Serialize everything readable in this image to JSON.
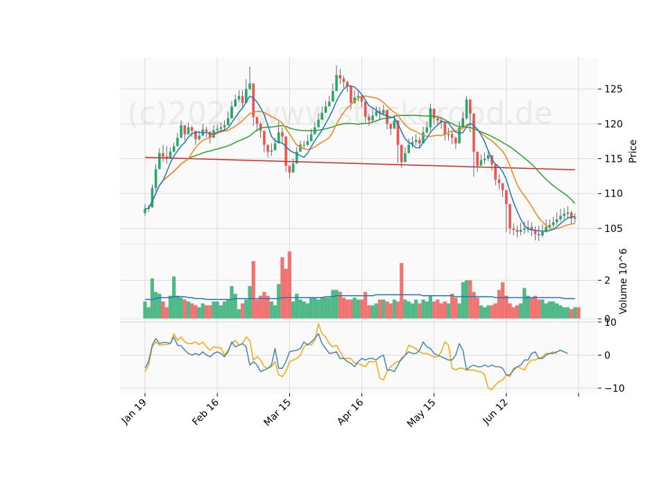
{
  "watermark": "(c)2024 www.stockorgod.de",
  "chart_data": [
    {
      "panel": "price",
      "type": "candlestick",
      "ylabel": "Price",
      "ylim": [
        102.8,
        129.5
      ],
      "yticks": [
        105,
        110,
        115,
        120,
        125
      ],
      "x_tick_labels": [
        "Jan 19",
        "Feb 16",
        "Mar 15",
        "Apr 16",
        "May 15",
        "Jun 12",
        ""
      ],
      "x_tick_index": [
        0,
        20,
        40,
        60,
        80,
        100,
        120
      ],
      "grid": true,
      "colors": {
        "up": "#26a96b",
        "down": "#ef5350",
        "ma_fast": "#1f77b4",
        "ma_mid": "#ff7f0e",
        "ma_slow": "#2ca02c",
        "ma_long": "#d62728",
        "wick": "#444444"
      },
      "close": [
        107.8,
        108.0,
        110.8,
        113.5,
        115.8,
        115.3,
        115.0,
        116.0,
        116.8,
        118.0,
        119.8,
        118.5,
        119.5,
        119.0,
        117.8,
        118.3,
        119.2,
        118.9,
        118.0,
        119.1,
        119.3,
        119.5,
        119.8,
        120.8,
        122.5,
        123.5,
        124.0,
        123.0,
        125.0,
        125.8,
        121.0,
        120.0,
        119.0,
        117.0,
        116.0,
        116.2,
        117.2,
        118.8,
        118.2,
        114.0,
        113.0,
        114.3,
        116.0,
        117.0,
        117.0,
        117.5,
        118.5,
        119.5,
        120.6,
        121.6,
        122.5,
        123.2,
        124.7,
        127.0,
        126.5,
        126.0,
        125.4,
        123.0,
        123.8,
        124.0,
        123.2,
        121.0,
        120.5,
        121.2,
        121.8,
        121.5,
        122.0,
        120.0,
        119.3,
        120.5,
        117.0,
        114.5,
        115.8,
        117.0,
        117.4,
        117.7,
        117.2,
        118.8,
        119.5,
        122.2,
        120.8,
        120.5,
        120.2,
        118.5,
        118.5,
        118.0,
        117.2,
        119.5,
        120.8,
        123.5,
        121.5,
        116.0,
        114.0,
        114.8,
        115.0,
        115.5,
        114.2,
        112.0,
        111.5,
        110.5,
        108.5,
        105.0,
        104.8,
        104.5,
        104.8,
        105.0,
        105.2,
        104.7,
        104.2,
        104.0,
        104.5,
        105.2,
        105.5,
        105.9,
        106.3,
        106.8,
        107.1,
        107.3,
        106.4,
        106.6
      ],
      "high": [
        108.5,
        108.4,
        111.3,
        114.2,
        116.5,
        117.0,
        116.8,
        116.6,
        117.3,
        118.7,
        120.5,
        119.5,
        120.2,
        119.7,
        118.8,
        119.0,
        120.0,
        119.6,
        118.9,
        119.8,
        119.9,
        120.1,
        120.5,
        121.8,
        123.3,
        124.2,
        124.8,
        124.8,
        126.4,
        128.2,
        122.4,
        121.0,
        120.2,
        118.0,
        117.0,
        117.2,
        118.0,
        120.3,
        119.5,
        115.5,
        114.0,
        115.0,
        116.7,
        117.6,
        117.6,
        118.4,
        119.3,
        120.3,
        121.5,
        122.5,
        123.3,
        124.0,
        125.8,
        128.4,
        127.9,
        126.9,
        126.2,
        124.6,
        124.8,
        124.6,
        124.1,
        122.4,
        121.4,
        122.1,
        122.5,
        122.4,
        122.7,
        121.2,
        120.0,
        121.3,
        119.5,
        116.5,
        116.7,
        117.9,
        118.2,
        118.5,
        118.1,
        119.6,
        120.3,
        122.9,
        122.0,
        121.2,
        121.0,
        119.4,
        119.4,
        119.1,
        118.2,
        120.3,
        121.7,
        124.0,
        123.3,
        117.6,
        115.7,
        115.6,
        115.9,
        116.3,
        115.5,
        113.1,
        112.7,
        111.4,
        109.8,
        106.8,
        105.7,
        105.4,
        105.8,
        106.0,
        106.2,
        105.9,
        105.3,
        105.4,
        105.6,
        106.3,
        106.3,
        106.7,
        107.3,
        107.8,
        107.9,
        108.2,
        107.5,
        107.2
      ],
      "low": [
        106.8,
        107.4,
        108.3,
        110.3,
        113.7,
        114.5,
        114.3,
        115.0,
        115.9,
        117.0,
        118.1,
        117.6,
        118.6,
        118.1,
        117.0,
        117.6,
        118.4,
        118.1,
        117.2,
        118.4,
        118.6,
        118.8,
        119.0,
        120.0,
        121.7,
        122.7,
        123.2,
        122.2,
        124.3,
        124.8,
        119.7,
        118.9,
        118.0,
        115.9,
        115.2,
        115.4,
        116.3,
        117.8,
        117.3,
        113.1,
        112.2,
        113.6,
        115.3,
        116.3,
        116.3,
        116.8,
        117.7,
        118.7,
        119.9,
        120.8,
        121.8,
        122.5,
        123.9,
        126.0,
        125.7,
        125.2,
        124.6,
        122.1,
        122.9,
        123.2,
        122.4,
        120.2,
        119.7,
        120.3,
        121.0,
        120.6,
        121.2,
        119.2,
        118.4,
        119.5,
        114.4,
        113.7,
        114.9,
        116.2,
        116.6,
        116.9,
        116.4,
        118.0,
        118.6,
        119.0,
        119.9,
        119.7,
        119.3,
        117.6,
        117.6,
        117.1,
        116.4,
        118.6,
        119.9,
        120.6,
        118.8,
        112.4,
        113.1,
        114.0,
        114.2,
        114.6,
        113.3,
        111.2,
        110.6,
        109.5,
        104.5,
        104.2,
        104.0,
        103.7,
        104.0,
        104.2,
        104.4,
        103.9,
        103.3,
        103.2,
        103.7,
        104.4,
        104.8,
        105.1,
        105.5,
        106.0,
        106.3,
        106.5,
        105.6,
        105.8
      ]
    },
    {
      "panel": "volume",
      "type": "bar",
      "ylabel": "Volume  10^6",
      "ylim": [
        0,
        3.9
      ],
      "yticks": [
        0,
        2
      ],
      "values": [
        0.9,
        0.6,
        2.1,
        1.4,
        1.3,
        0.9,
        0.6,
        1.2,
        2.2,
        1.2,
        1.1,
        1.0,
        0.9,
        0.8,
        0.7,
        0.6,
        0.8,
        0.7,
        0.7,
        0.9,
        0.9,
        0.7,
        0.9,
        1.0,
        1.7,
        1.3,
        0.5,
        0.8,
        1.0,
        1.7,
        3.0,
        1.0,
        1.2,
        1.4,
        1.2,
        0.9,
        0.7,
        1.8,
        3.2,
        2.6,
        3.5,
        0.9,
        1.3,
        1.0,
        0.9,
        0.8,
        1.1,
        1.1,
        1.0,
        1.1,
        1.1,
        1.1,
        1.5,
        1.5,
        1.4,
        1.1,
        1.0,
        1.0,
        1.1,
        1.0,
        1.0,
        1.4,
        0.7,
        0.7,
        0.8,
        1.0,
        1.0,
        0.9,
        0.8,
        1.0,
        0.9,
        2.9,
        1.0,
        0.9,
        0.8,
        1.0,
        0.8,
        1.0,
        0.9,
        1.2,
        0.9,
        1.0,
        0.8,
        0.9,
        0.8,
        1.3,
        1.1,
        0.8,
        1.9,
        2.0,
        2.0,
        1.4,
        1.1,
        0.7,
        0.6,
        0.7,
        0.7,
        0.8,
        1.5,
        1.9,
        1.2,
        0.8,
        0.6,
        0.7,
        0.8,
        1.6,
        1.2,
        1.1,
        1.2,
        1.0,
        1.0,
        0.8,
        0.9,
        0.9,
        0.8,
        0.7,
        0.6,
        0.6,
        0.5,
        0.6,
        0.6
      ],
      "ma_values": [
        1.0,
        1.0,
        1.0,
        1.05,
        1.1,
        1.1,
        1.1,
        1.1,
        1.15,
        1.15,
        1.15,
        1.15,
        1.1,
        1.1,
        1.05,
        1.05,
        1.05,
        1.0,
        1.0,
        1.0,
        1.0,
        1.0,
        1.0,
        1.0,
        1.0,
        1.05,
        1.05,
        1.05,
        1.05,
        1.05,
        1.05,
        1.05,
        1.05,
        1.05,
        1.05,
        1.05,
        1.05,
        1.05,
        1.1,
        1.1,
        1.1,
        1.1,
        1.1,
        1.1,
        1.1,
        1.1,
        1.1,
        1.1,
        1.1,
        1.1,
        1.15,
        1.15,
        1.15,
        1.2,
        1.2,
        1.2,
        1.2,
        1.2,
        1.2,
        1.2,
        1.2,
        1.2,
        1.2,
        1.2,
        1.25,
        1.25,
        1.25,
        1.25,
        1.25,
        1.25,
        1.25,
        1.25,
        1.25,
        1.25,
        1.25,
        1.25,
        1.25,
        1.2,
        1.2,
        1.2,
        1.2,
        1.2,
        1.2,
        1.2,
        1.2,
        1.2,
        1.15,
        1.15,
        1.15,
        1.15,
        1.15,
        1.15,
        1.15,
        1.15,
        1.15,
        1.15,
        1.15,
        1.1,
        1.1,
        1.1,
        1.1,
        1.1,
        1.1,
        1.1,
        1.1,
        1.1,
        1.1,
        1.1,
        1.1,
        1.1,
        1.1,
        1.1,
        1.1,
        1.1,
        1.1,
        1.1,
        1.05,
        1.05,
        1.05,
        1.05
      ]
    },
    {
      "panel": "oscillator",
      "type": "line",
      "ylim": [
        -11.5,
        11.0
      ],
      "yticks": [
        -10,
        0,
        10
      ],
      "colors": {
        "line1": "#4682b4",
        "line2": "#ffa500"
      },
      "line1": [
        -4,
        -2,
        3,
        5,
        3.5,
        3.8,
        3.8,
        3.5,
        5.5,
        3,
        2.8,
        1.5,
        0.5,
        0,
        0.5,
        0,
        1,
        0,
        -0.5,
        0.5,
        1,
        0.5,
        -0.5,
        1,
        4,
        2.5,
        3,
        3.5,
        2.5,
        -3,
        -2,
        -3,
        -5,
        -4.5,
        -4,
        -3,
        2,
        -4,
        -4,
        -2,
        1,
        1.3,
        1.5,
        2,
        4,
        3,
        4,
        5,
        6.5,
        3.5,
        2,
        0.5,
        0.7,
        1,
        -1,
        -1,
        -2,
        -2.5,
        -3.5,
        -2,
        -1,
        -1.5,
        -1,
        -1,
        -1.5,
        -0.5,
        0,
        -4.5,
        -4.5,
        -5,
        -3,
        -1,
        0,
        1,
        0.5,
        0.5,
        1.5,
        4,
        2.5,
        2,
        0.5,
        0,
        -0.5,
        -1,
        -1.5,
        -1.5,
        0,
        3.5,
        1.5,
        -4.5,
        -3.5,
        -3,
        -3.5,
        -3.5,
        -3,
        -3.5,
        -3,
        -3.5,
        -3.5,
        -4,
        -6,
        -6,
        -4.5,
        -3.5,
        -3,
        -1.5,
        -1.5,
        0.5,
        1,
        -1,
        -1,
        0,
        0.5,
        0.5,
        1,
        1.5,
        1,
        0.5
      ],
      "line2": [
        -5,
        -3,
        2.5,
        4,
        3,
        3.2,
        3.2,
        3.5,
        6.5,
        4.5,
        5.5,
        4,
        3.5,
        3.5,
        4,
        3.2,
        4,
        2.5,
        1.5,
        2.5,
        2.3,
        2.2,
        0,
        1.5,
        3.5,
        4.5,
        3,
        3.5,
        5.5,
        4.5,
        -1.5,
        -0.5,
        -1.5,
        -3.5,
        -4,
        -3.5,
        -2,
        -6,
        -6.5,
        -5,
        -2,
        -1.5,
        -1,
        0,
        2.5,
        3.5,
        3,
        4.5,
        9.5,
        6.5,
        5.5,
        3.5,
        2.5,
        3,
        1,
        -1,
        -1,
        -1,
        -2.5,
        -2.5,
        -3,
        -3.5,
        -2,
        -2,
        -2,
        -7,
        -7.5,
        -5,
        -3.5,
        -2.5,
        -2,
        -1.5,
        0,
        3,
        2.5,
        2,
        1,
        0.5,
        0.5,
        0,
        -0.5,
        -0.5,
        1,
        4,
        3,
        -4,
        -4.5,
        -4,
        -4,
        -4.5,
        -4.5,
        -4.5,
        -5,
        -5,
        -6,
        -10,
        -10.5,
        -9,
        -8,
        -7.5,
        -6,
        -6.5,
        -4,
        -3.5,
        -4,
        -4.5,
        -2.5,
        -1.5,
        -1.5,
        -1,
        -0.5,
        0.5,
        0.5,
        1,
        0.5
      ]
    }
  ]
}
